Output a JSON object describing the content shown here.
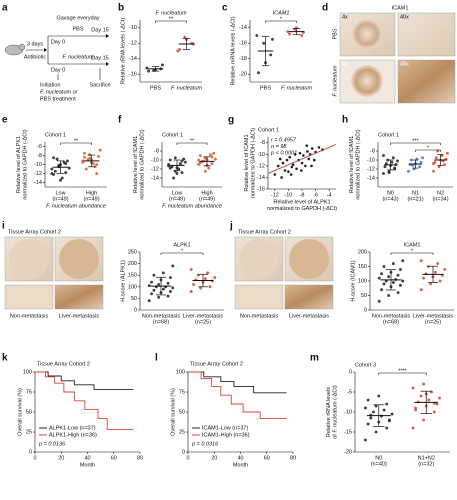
{
  "panels": {
    "a": {
      "label": "a",
      "duration": "3 days",
      "pretreat": "Antibiotic",
      "gavage": "Gavage everyday",
      "arm1": "PBS",
      "arm1_start": "Day 0",
      "arm1_end": "Day 15",
      "arm2": "F. nucleatum",
      "arm2_start": "Day 0",
      "arm2_end": "Day 15",
      "initiation": [
        "Initiation",
        "F. nucleatum or",
        "PBS treatment"
      ],
      "end": "Sacrifice"
    },
    "b": {
      "label": "b",
      "title": "F. nucleatum",
      "y_label": "Relative rRNA levels (-ΔCt)",
      "ylim": [
        -17,
        -9
      ],
      "yticks": [
        -16,
        -14,
        -12,
        -10
      ],
      "significance": [
        "**"
      ],
      "groups": [
        {
          "name": "PBS",
          "color": "#222222",
          "values": [
            -15.2,
            -15.5,
            -15.3,
            -15.6,
            -15.4,
            -14.8
          ],
          "mean": -15.3,
          "sd": 0.3
        },
        {
          "name": "F. nucleatum",
          "color": "#d9452f",
          "values": [
            -13.0,
            -11.2,
            -12.0,
            -12.8,
            -11.5,
            -12.1
          ],
          "mean": -12.1,
          "sd": 0.7
        }
      ]
    },
    "c": {
      "label": "c",
      "title": "ICAM1",
      "y_label": "Relative mRNA levels (-ΔCt)",
      "ylim": [
        -21,
        -13
      ],
      "yticks": [
        -20,
        -18,
        -16,
        -14
      ],
      "significance": [
        "*"
      ],
      "groups": [
        {
          "name": "PBS",
          "color": "#222222",
          "values": [
            -15.0,
            -16.0,
            -17.5,
            -19.8,
            -18.5,
            -15.5
          ],
          "mean": -17,
          "sd": 1.9
        },
        {
          "name": "F. nucleatum",
          "color": "#d9452f",
          "values": [
            -14.5,
            -14.2,
            -15.0,
            -14.8,
            -14.0,
            -14.6
          ],
          "mean": -14.5,
          "sd": 0.4
        }
      ]
    },
    "d": {
      "label": "d",
      "title": "ICAM1",
      "mag_low": "4x",
      "mag_high": "40x",
      "rows": [
        "PBS",
        "F. nucleatum"
      ]
    },
    "e": {
      "label": "e",
      "title": "Cohort 1",
      "y_label": [
        "Relative level of ALPK1",
        "normalized to GAPDH (-ΔCt)"
      ],
      "x_label": "F. nucleatum abundance",
      "ylim": [
        -15,
        -5
      ],
      "yticks": [
        -14,
        -12,
        -10,
        -8,
        -6
      ],
      "significance": [
        "**"
      ],
      "groups": [
        {
          "name": "Low",
          "n_label": "(n=49)",
          "color": "#222222",
          "values": [
            -11,
            -10.5,
            -9.8,
            -12.2,
            -10,
            -9.2,
            -11.5,
            -13,
            -10.8,
            -8.8,
            -9.5,
            -12,
            -10.2,
            -11.8,
            -8.5,
            -13.5
          ],
          "mean": -10.6,
          "sd": 1.4
        },
        {
          "name": "High",
          "n_label": "(n=49)",
          "color": "#e0562f",
          "values": [
            -9.5,
            -8.6,
            -10,
            -7.5,
            -9,
            -8.2,
            -11,
            -9.8,
            -6.8,
            -8.9,
            -10.5,
            -9.2,
            -7.8,
            -12,
            -8.4,
            -9.6
          ],
          "mean": -9.2,
          "sd": 1.3
        }
      ]
    },
    "f": {
      "label": "f",
      "title": "Cohort 1",
      "y_label": [
        "Relative level of ICAM1",
        "normalized to GAPDH (-ΔCt)"
      ],
      "x_label": "F. nucleatum abundance",
      "ylim": [
        -16,
        -6
      ],
      "yticks": [
        -14,
        -12,
        -10,
        -8
      ],
      "significance": [
        "**"
      ],
      "groups": [
        {
          "name": "Low",
          "n_label": "(n=49)",
          "color": "#222222",
          "values": [
            -11,
            -12.5,
            -10.2,
            -11.8,
            -13,
            -9.8,
            -11.5,
            -12,
            -10.5,
            -14,
            -10.8,
            -11.3,
            -9.5,
            -12.8,
            -10,
            -11.7
          ],
          "mean": -11.2,
          "sd": 1.2
        },
        {
          "name": "High",
          "n_label": "(n=49)",
          "color": "#e0562f",
          "values": [
            -10,
            -9.5,
            -10.8,
            -9,
            -11.2,
            -8.5,
            -10.4,
            -11.8,
            -9.8,
            -10.2,
            -8.8,
            -11,
            -12.5,
            -9.3,
            -10.6,
            -9.9
          ],
          "mean": -10.3,
          "sd": 1.0
        }
      ]
    },
    "g": {
      "label": "g",
      "title": "Cohort 1",
      "annotations": [
        "r = 0.4957",
        "n = 98",
        "p < 0.0001"
      ],
      "x_label": [
        "Relative level of ALPK1",
        "normalized to GAPDH (-ΔCt)"
      ],
      "y_label": [
        "Relative level of ICAM1",
        "normalized to GAPDH (-ΔCt)"
      ],
      "xlim": [
        -13,
        -3
      ],
      "xticks": [
        -12,
        -10,
        -8,
        -6,
        -4
      ],
      "ylim": [
        -16,
        -7
      ],
      "yticks": [
        -16,
        -14,
        -12,
        -10,
        -8
      ],
      "color": "#222222",
      "fit_color": "#c0392b",
      "x": [
        -12,
        -11.5,
        -11,
        -10.8,
        -10.5,
        -10.2,
        -10,
        -9.8,
        -9.5,
        -9.3,
        -9,
        -8.8,
        -8.5,
        -8.3,
        -8,
        -7.8,
        -7.5,
        -7.2,
        -7,
        -6.8,
        -6.5,
        -6.2,
        -6,
        -5.5,
        -5,
        -11.2,
        -9.6,
        -8.1,
        -7.3,
        -6.6
      ],
      "y": [
        -13.5,
        -12,
        -14,
        -11.5,
        -12.8,
        -11,
        -13,
        -10.5,
        -12.2,
        -11.8,
        -10,
        -12.5,
        -11,
        -9.8,
        -11.5,
        -10.2,
        -12,
        -9.5,
        -10.8,
        -10,
        -9,
        -11,
        -9.6,
        -8.8,
        -9.2,
        -10.8,
        -13.5,
        -12.8,
        -8.5,
        -12
      ],
      "fit": {
        "x": [
          -13,
          -3
        ],
        "y": [
          -13.3,
          -8.3
        ]
      }
    },
    "h": {
      "label": "h",
      "title": "Cohort 1",
      "y_label": [
        "Relative level of ICAM1",
        "normalized to GAPDH (-ΔCt)"
      ],
      "ylim": [
        -16,
        -6
      ],
      "yticks": [
        -14,
        -12,
        -10,
        -8
      ],
      "significance": [
        "***",
        "*"
      ],
      "groups": [
        {
          "name": "N0",
          "n_label": "(n=43)",
          "color": "#222222",
          "values": [
            -13,
            -12.5,
            -12,
            -11.5,
            -11.2,
            -11,
            -10.8,
            -10.5,
            -10.2,
            -10,
            -9.5,
            -9,
            -12.8,
            -11.8
          ],
          "mean": -11.1,
          "sd": 1.1
        },
        {
          "name": "N1",
          "n_label": "(n=21)",
          "color": "#3b78c2",
          "values": [
            -12.5,
            -12,
            -11.5,
            -11,
            -10.8,
            -10.5,
            -10,
            -9.8,
            -9.5,
            -11.2
          ],
          "mean": -10.9,
          "sd": 0.9
        },
        {
          "name": "N2",
          "n_label": "(n=34)",
          "color": "#d9452f",
          "values": [
            -12.5,
            -11.5,
            -11,
            -10.5,
            -10,
            -9.8,
            -9.5,
            -9,
            -8.5,
            -8,
            -10.2,
            -10.8
          ],
          "mean": -10,
          "sd": 1.2
        }
      ]
    },
    "i": {
      "label": "i",
      "cohort": "Tissue Array Cohort 2",
      "image_labels": [
        "Non-metastasis",
        "Liver-metastasis"
      ],
      "chart": {
        "title": "ALPK1",
        "y_label": "H-score (ALPK1)",
        "ylim": [
          0,
          250
        ],
        "yticks": [
          0,
          50,
          100,
          150,
          200,
          250
        ],
        "significance": [
          "*"
        ],
        "groups": [
          {
            "name": "Non-metastasis",
            "n_label": "(n=68)",
            "color": "#222222",
            "values": [
              40,
              55,
              60,
              70,
              75,
              80,
              85,
              90,
              95,
              100,
              100,
              105,
              110,
              115,
              120,
              130,
              140,
              150,
              160,
              190
            ],
            "mean": 103,
            "sd": 38
          },
          {
            "name": "Liver-metastasis",
            "n_label": "(n=25)",
            "color": "#d9452f",
            "values": [
              80,
              95,
              100,
              110,
              120,
              125,
              130,
              135,
              140,
              150,
              160,
              175
            ],
            "mean": 127,
            "sd": 27
          }
        ]
      }
    },
    "j": {
      "label": "j",
      "cohort": "Tissue Array Cohort 2",
      "image_labels": [
        "Non-metastasis",
        "Liver-metastasis"
      ],
      "chart": {
        "title": "ICAM1",
        "y_label": "H-score (ICAM1)",
        "ylim": [
          0,
          200
        ],
        "yticks": [
          0,
          50,
          100,
          150,
          200
        ],
        "significance": [
          "*"
        ],
        "groups": [
          {
            "name": "Non-metastasis",
            "n_label": "(n=68)",
            "color": "#222222",
            "values": [
              30,
              50,
              60,
              70,
              80,
              85,
              90,
              95,
              100,
              100,
              105,
              110,
              115,
              120,
              125,
              130,
              140,
              150,
              160,
              170
            ],
            "mean": 104,
            "sd": 35
          },
          {
            "name": "Liver-metastasis",
            "n_label": "(n=25)",
            "color": "#d9452f",
            "values": [
              70,
              90,
              100,
              110,
              115,
              120,
              125,
              130,
              140,
              150,
              160,
              170
            ],
            "mean": 123,
            "sd": 28
          }
        ]
      }
    },
    "k": {
      "label": "k",
      "title": "Tissue Array Cohort 2",
      "y_label": "Overall survival (%)",
      "x_label": "Month",
      "xlim": [
        0,
        80
      ],
      "xticks": [
        0,
        20,
        40,
        60,
        80
      ],
      "ylim": [
        0,
        100
      ],
      "yticks": [
        0,
        25,
        50,
        75,
        100
      ],
      "p_label": "p = 0.0136",
      "series": [
        {
          "name": "ALPK1-Low (n=37)",
          "color": "#222222",
          "x": [
            0,
            10,
            10,
            20,
            20,
            30,
            30,
            45,
            45,
            75
          ],
          "y": [
            100,
            100,
            95,
            95,
            89,
            89,
            84,
            84,
            78,
            78
          ]
        },
        {
          "name": "ALPK1-High (n=36)",
          "color": "#d9452f",
          "x": [
            0,
            8,
            8,
            15,
            15,
            22,
            22,
            30,
            30,
            38,
            38,
            48,
            48,
            55,
            55,
            75
          ],
          "y": [
            100,
            100,
            94,
            94,
            86,
            86,
            75,
            75,
            64,
            64,
            53,
            53,
            42,
            42,
            28,
            28
          ]
        }
      ]
    },
    "l": {
      "label": "l",
      "title": "Tissue Array Cohort 2",
      "y_label": "Overall survival (%)",
      "x_label": "Month",
      "xlim": [
        0,
        80
      ],
      "xticks": [
        0,
        20,
        40,
        60,
        80
      ],
      "ylim": [
        0,
        100
      ],
      "yticks": [
        0,
        25,
        50,
        75,
        100
      ],
      "p_label": "p = 0.0316",
      "series": [
        {
          "name": "ICAM1-Low (n=37)",
          "color": "#222222",
          "x": [
            0,
            12,
            12,
            25,
            25,
            35,
            35,
            50,
            50,
            75
          ],
          "y": [
            100,
            100,
            94,
            94,
            88,
            88,
            82,
            82,
            74,
            74
          ]
        },
        {
          "name": "ICAM1-High (n=36)",
          "color": "#d9452f",
          "x": [
            0,
            10,
            10,
            18,
            18,
            25,
            25,
            33,
            33,
            42,
            42,
            55,
            55,
            75
          ],
          "y": [
            100,
            100,
            92,
            92,
            82,
            82,
            71,
            71,
            60,
            60,
            50,
            50,
            42,
            42
          ]
        }
      ]
    },
    "m": {
      "label": "m",
      "title": "Cohort 3",
      "y_label": [
        "Relative rRNA levels",
        "of F. nucleatum (-ΔCt)"
      ],
      "ylim": [
        -20,
        0
      ],
      "yticks": [
        -20,
        -15,
        -10,
        -5,
        0
      ],
      "significance": [
        "****"
      ],
      "groups": [
        {
          "name": "N0",
          "n_label": "(n=40)",
          "color": "#222222",
          "values": [
            -17,
            -15,
            -14,
            -13,
            -12.5,
            -12,
            -11.5,
            -11,
            -10.5,
            -10,
            -9.5,
            -9,
            -8.5,
            -8,
            -7,
            -6,
            -12.2,
            -10.8
          ],
          "mean": -10.9,
          "sd": 2.7
        },
        {
          "name": "N1+N2",
          "n_label": "(n=32)",
          "color": "#d9452f",
          "values": [
            -14,
            -12,
            -10,
            -9,
            -8.5,
            -8,
            -7.5,
            -7,
            -6.5,
            -6,
            -5,
            -4,
            -3,
            -7.8,
            -9.5,
            -5.5
          ],
          "mean": -7.6,
          "sd": 2.8
        }
      ]
    }
  }
}
